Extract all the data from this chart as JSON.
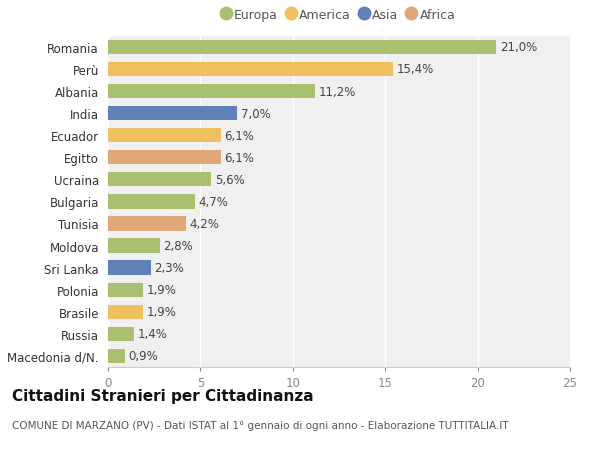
{
  "categories": [
    "Macedonia d/N.",
    "Russia",
    "Brasile",
    "Polonia",
    "Sri Lanka",
    "Moldova",
    "Tunisia",
    "Bulgaria",
    "Ucraina",
    "Egitto",
    "Ecuador",
    "India",
    "Albania",
    "Perù",
    "Romania"
  ],
  "values": [
    0.9,
    1.4,
    1.9,
    1.9,
    2.3,
    2.8,
    4.2,
    4.7,
    5.6,
    6.1,
    6.1,
    7.0,
    11.2,
    15.4,
    21.0
  ],
  "labels": [
    "0,9%",
    "1,4%",
    "1,9%",
    "1,9%",
    "2,3%",
    "2,8%",
    "4,2%",
    "4,7%",
    "5,6%",
    "6,1%",
    "6,1%",
    "7,0%",
    "11,2%",
    "15,4%",
    "21,0%"
  ],
  "colors": [
    "#a8c070",
    "#a8c070",
    "#f0c060",
    "#a8c070",
    "#6080b8",
    "#a8c070",
    "#e0a878",
    "#a8c070",
    "#a8c070",
    "#e0a878",
    "#f0c060",
    "#6080b8",
    "#a8c070",
    "#f0c060",
    "#a8c070"
  ],
  "legend": [
    {
      "label": "Europa",
      "color": "#a8c070"
    },
    {
      "label": "America",
      "color": "#f0c060"
    },
    {
      "label": "Asia",
      "color": "#6080b8"
    },
    {
      "label": "Africa",
      "color": "#e0a878"
    }
  ],
  "xlim": [
    0,
    25
  ],
  "xticks": [
    0,
    5,
    10,
    15,
    20,
    25
  ],
  "title": "Cittadini Stranieri per Cittadinanza",
  "subtitle": "COMUNE DI MARZANO (PV) - Dati ISTAT al 1° gennaio di ogni anno - Elaborazione TUTTITALIA.IT",
  "bg_color": "#ffffff",
  "plot_bg_color": "#f0f0f0",
  "grid_color": "#ffffff",
  "bar_height": 0.65,
  "label_fontsize": 8.5,
  "tick_fontsize": 8.5,
  "title_fontsize": 11,
  "subtitle_fontsize": 7.5
}
